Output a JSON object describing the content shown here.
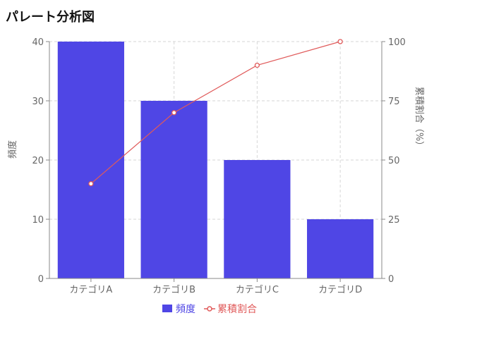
{
  "title": "パレート分析図",
  "colors": {
    "bar": "#4f46e5",
    "line": "#e05a5a",
    "grid": "#d6d6d6",
    "axis": "#888888"
  },
  "chart_data": {
    "type": "bar",
    "combo": "bar+line",
    "title": "パレート分析図",
    "categories": [
      "カテゴリA",
      "カテゴリB",
      "カテゴリC",
      "カテゴリD"
    ],
    "series": [
      {
        "name": "頻度",
        "type": "bar",
        "axis": "left",
        "values": [
          40,
          30,
          20,
          10
        ]
      },
      {
        "name": "累積割合",
        "type": "line",
        "axis": "right",
        "values": [
          40,
          70,
          90,
          100
        ]
      }
    ],
    "ylabel": "頻度",
    "ylabel_right": "累積割合（%）",
    "ylim": [
      0,
      40
    ],
    "yticks": [
      0,
      10,
      20,
      30,
      40
    ],
    "ylim_right": [
      0,
      100
    ],
    "yticks_right": [
      0,
      25,
      50,
      75,
      100
    ],
    "grid": true,
    "legend_position": "bottom"
  }
}
